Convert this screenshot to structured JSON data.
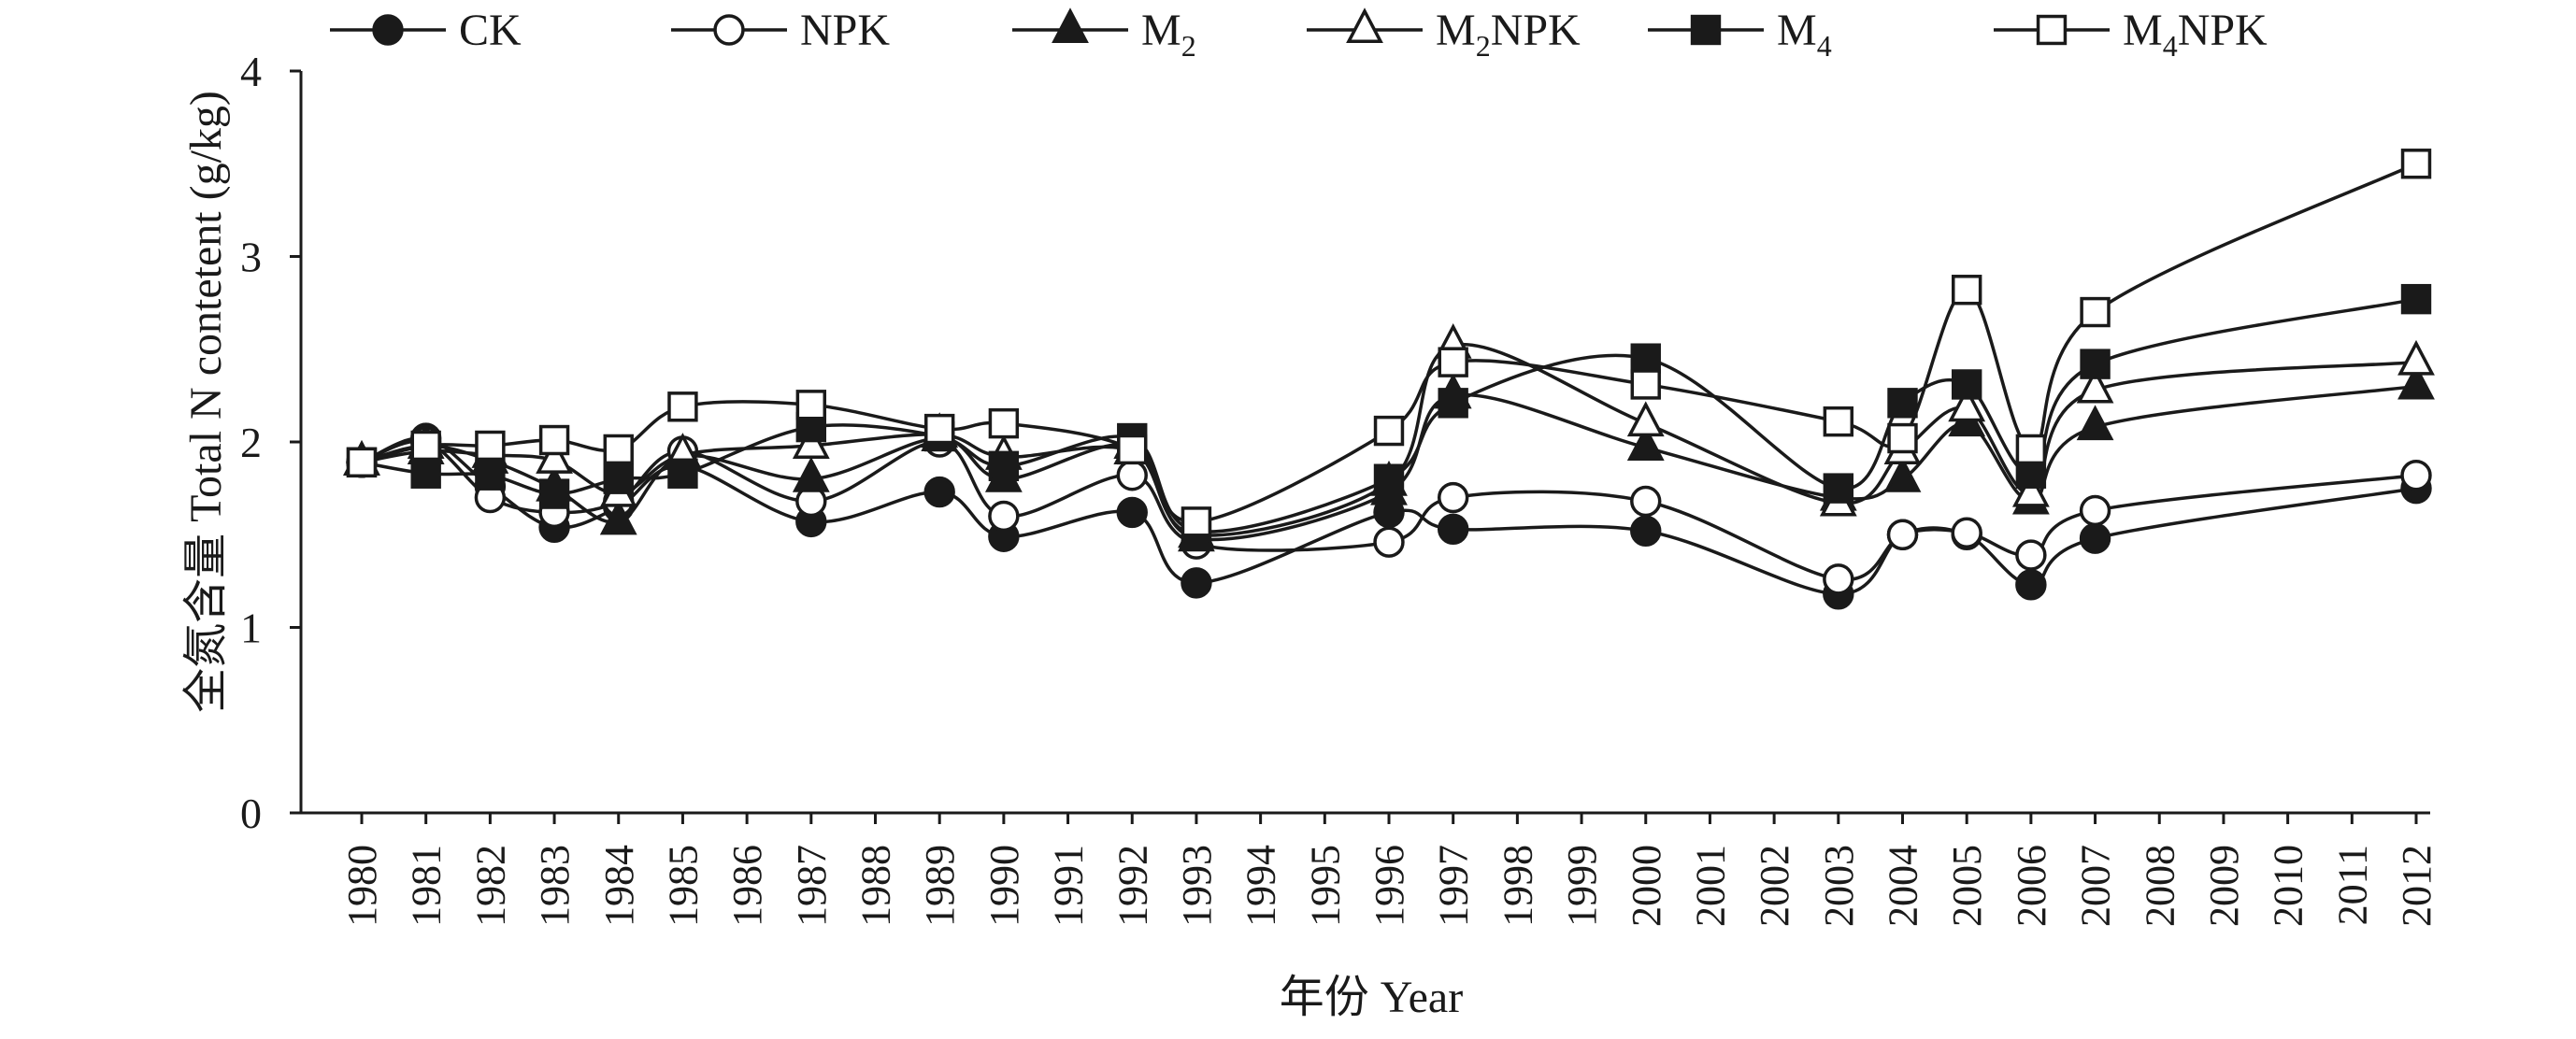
{
  "chart_data": {
    "type": "line",
    "xlabel": "年份 Year",
    "ylabel": "全氮含量 Total N contetent (g/kg)",
    "xlim": [
      1980,
      2012
    ],
    "ylim": [
      0,
      4
    ],
    "yticks": [
      0,
      1,
      2,
      3,
      4
    ],
    "xticks": [
      1980,
      1981,
      1982,
      1983,
      1984,
      1985,
      1986,
      1987,
      1988,
      1989,
      1990,
      1991,
      1992,
      1993,
      1994,
      1995,
      1996,
      1997,
      1998,
      1999,
      2000,
      2001,
      2002,
      2003,
      2004,
      2005,
      2006,
      2007,
      2008,
      2009,
      2010,
      2011,
      2012
    ],
    "grid": false,
    "legend_position": "top",
    "x": [
      1980,
      1981,
      1982,
      1983,
      1984,
      1985,
      1987,
      1989,
      1990,
      1992,
      1993,
      1996,
      1997,
      2000,
      2003,
      2004,
      2005,
      2006,
      2007,
      2012
    ],
    "series": [
      {
        "name": "CK",
        "sub": "",
        "tail": "",
        "marker": "circle",
        "filled": true,
        "values": [
          1.89,
          2.02,
          1.76,
          1.54,
          1.65,
          1.87,
          1.57,
          1.73,
          1.49,
          1.62,
          1.24,
          1.62,
          1.53,
          1.52,
          1.18,
          1.5,
          1.5,
          1.23,
          1.48,
          1.75
        ]
      },
      {
        "name": "NPK",
        "sub": "",
        "tail": "",
        "marker": "circle",
        "filled": false,
        "values": [
          1.89,
          2.0,
          1.7,
          1.62,
          1.68,
          1.95,
          1.68,
          2.0,
          1.6,
          1.82,
          1.45,
          1.46,
          1.7,
          1.68,
          1.26,
          1.5,
          1.51,
          1.39,
          1.63,
          1.82
        ]
      },
      {
        "name": "M",
        "sub": "2",
        "tail": "",
        "marker": "triangle",
        "filled": true,
        "values": [
          1.89,
          1.98,
          1.9,
          1.75,
          1.57,
          1.92,
          1.8,
          2.02,
          1.8,
          1.98,
          1.48,
          1.73,
          2.25,
          1.97,
          1.7,
          1.8,
          2.1,
          1.68,
          2.08,
          2.3
        ]
      },
      {
        "name": "M",
        "sub": "2",
        "tail": "NPK",
        "marker": "triangle",
        "filled": false,
        "values": [
          1.89,
          1.95,
          1.93,
          1.9,
          1.72,
          1.93,
          1.98,
          2.04,
          1.92,
          1.95,
          1.5,
          1.78,
          2.52,
          2.1,
          1.67,
          1.95,
          2.18,
          1.72,
          2.28,
          2.43
        ]
      },
      {
        "name": "M",
        "sub": "4",
        "tail": "",
        "marker": "square",
        "filled": true,
        "values": [
          1.89,
          1.83,
          1.82,
          1.72,
          1.8,
          1.83,
          2.08,
          2.03,
          1.87,
          2.02,
          1.52,
          1.8,
          2.21,
          2.45,
          1.75,
          2.21,
          2.31,
          1.83,
          2.42,
          2.77
        ]
      },
      {
        "name": "M",
        "sub": "4",
        "tail": "NPK",
        "marker": "square",
        "filled": false,
        "values": [
          1.89,
          1.98,
          1.98,
          2.01,
          1.96,
          2.19,
          2.2,
          2.07,
          2.1,
          1.96,
          1.57,
          2.06,
          2.43,
          2.31,
          2.11,
          2.02,
          2.82,
          1.96,
          2.7,
          3.5
        ]
      }
    ]
  }
}
